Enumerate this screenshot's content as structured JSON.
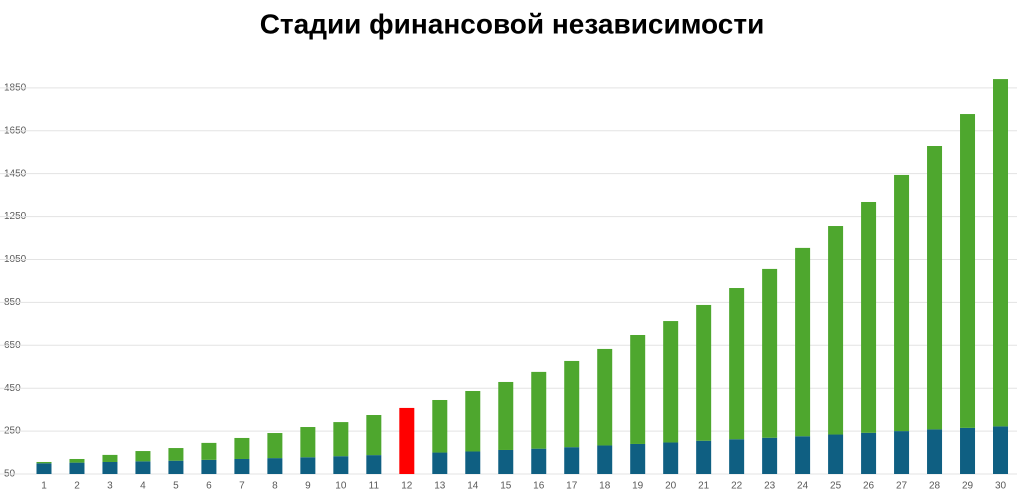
{
  "chart_data": {
    "type": "stacked_bar",
    "title": "Стадии финансовой независимости",
    "categories": [
      "1",
      "2",
      "3",
      "4",
      "5",
      "6",
      "7",
      "8",
      "9",
      "10",
      "11",
      "12",
      "13",
      "14",
      "15",
      "16",
      "17",
      "18",
      "19",
      "20",
      "21",
      "22",
      "23",
      "24",
      "25",
      "26",
      "27",
      "28",
      "29",
      "30"
    ],
    "series": [
      {
        "color": "#0f5f82",
        "values": [
          100,
          103,
          106,
          109,
          112,
          116,
          120,
          124,
          128,
          133,
          138,
          null,
          150,
          155,
          162,
          168,
          175,
          183,
          190,
          197,
          205,
          212,
          219,
          226,
          234,
          242,
          250,
          258,
          265,
          272
        ]
      },
      {
        "color": "#4ea72e",
        "values": [
          6,
          17,
          33,
          48,
          59,
          79,
          98,
          117,
          141,
          159,
          187,
          null,
          245,
          282,
          317,
          358,
          402,
          450,
          508,
          566,
          633,
          705,
          787,
          878,
          972,
          1076,
          1194,
          1321,
          1463,
          1619
        ]
      },
      {
        "color": "#ff0000",
        "values": [
          null,
          null,
          null,
          null,
          null,
          null,
          null,
          null,
          null,
          null,
          null,
          358,
          null,
          null,
          null,
          null,
          null,
          null,
          null,
          null,
          null,
          null,
          null,
          null,
          null,
          null,
          null,
          null,
          null,
          null
        ]
      }
    ],
    "ylim": [
      50,
      1910
    ],
    "yticks": [
      50,
      250,
      450,
      650,
      850,
      1050,
      1250,
      1450,
      1650,
      1850
    ],
    "grid": true
  }
}
